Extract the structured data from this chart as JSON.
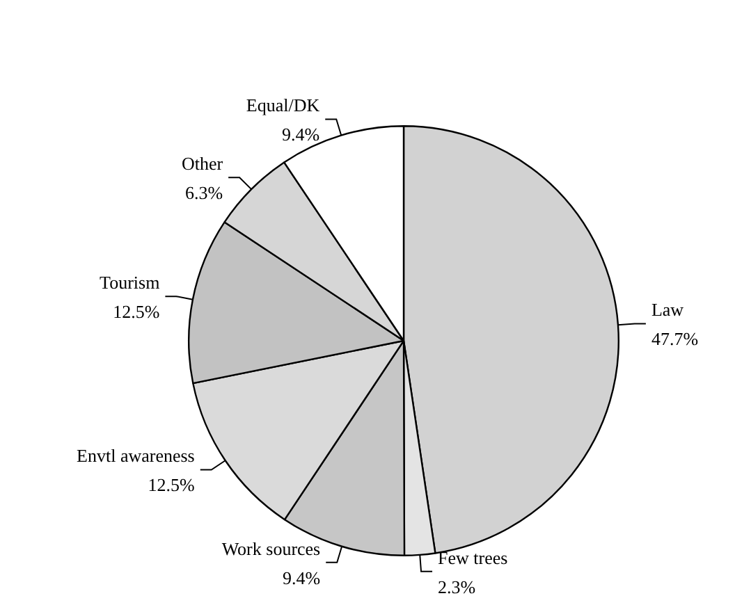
{
  "chart_data": {
    "type": "pie",
    "categories": [
      "Law",
      "Few trees",
      "Work sources",
      "Envtl awareness",
      "Tourism",
      "Other",
      "Equal/DK"
    ],
    "values": [
      47.7,
      2.3,
      9.4,
      12.5,
      12.5,
      6.3,
      9.4
    ],
    "colors": [
      "#d2d2d2",
      "#e4e4e4",
      "#c6c6c6",
      "#dadada",
      "#c2c2c2",
      "#d6d6d6",
      "#ffffff"
    ],
    "value_labels": [
      "47.7%",
      "2.3%",
      "9.4%",
      "12.5%",
      "12.5%",
      "6.3%",
      "9.4%"
    ],
    "legend": false
  }
}
